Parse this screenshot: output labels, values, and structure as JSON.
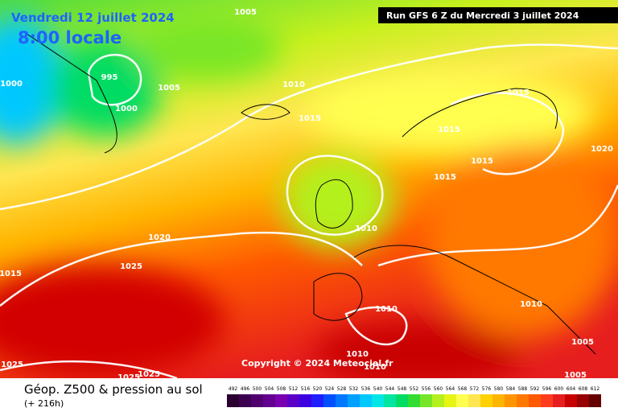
{
  "header": {
    "date": "Vendredi 12 juillet 2024",
    "time": "8:00 locale",
    "run": "Run GFS 6 Z du Mercredi 3 juillet 2024"
  },
  "copyright": "Copyright © 2024 Meteociel.fr",
  "footer": {
    "title": "Géop. Z500 & pression au sol",
    "subtitle": "(+ 216h)"
  },
  "isobars": [
    "1005",
    "1000",
    "995",
    "1005",
    "1000",
    "1010",
    "1015",
    "1015",
    "1015",
    "1015",
    "1015",
    "1020",
    "1010",
    "1020",
    "1025",
    "1015",
    "1010",
    "1010",
    "1005",
    "1010",
    "1010",
    "1025",
    "1025",
    "1025",
    "1005"
  ],
  "colorbar": {
    "labels": [
      492,
      496,
      500,
      504,
      508,
      512,
      516,
      520,
      524,
      528,
      532,
      536,
      540,
      544,
      548,
      552,
      556,
      560,
      564,
      568,
      572,
      576,
      580,
      584,
      588,
      592,
      596,
      600,
      604,
      608,
      612
    ],
    "colors": [
      "#2a0030",
      "#3c0050",
      "#50006e",
      "#640090",
      "#7800b0",
      "#5a00c8",
      "#3c00e0",
      "#1e1eff",
      "#0050ff",
      "#0078ff",
      "#00a0ff",
      "#00c8ff",
      "#00e6e6",
      "#00e6a0",
      "#00dc64",
      "#32dc32",
      "#78e628",
      "#b4f01e",
      "#e6f514",
      "#ffff50",
      "#ffe650",
      "#ffd200",
      "#ffb400",
      "#ff9600",
      "#ff7800",
      "#ff5a00",
      "#ff3c1e",
      "#e61e1e",
      "#c80000",
      "#960000",
      "#640000"
    ]
  }
}
